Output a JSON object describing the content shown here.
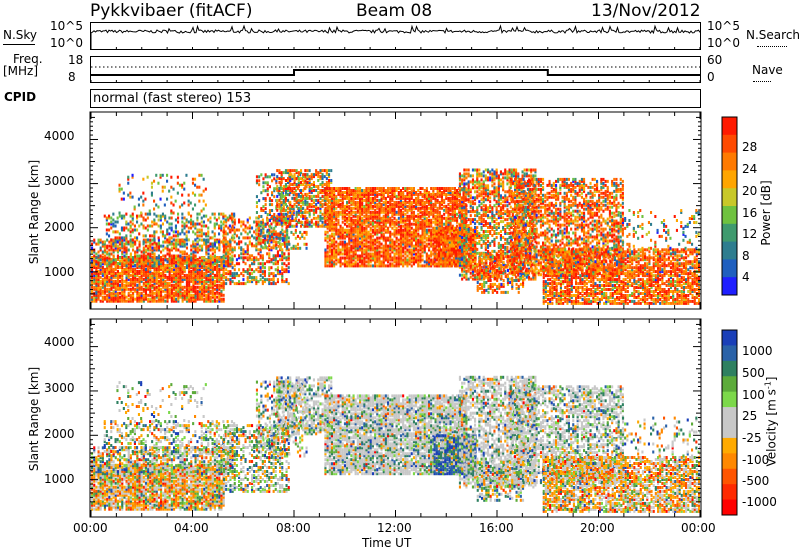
{
  "header": {
    "station": "Pykkvibaer (fitACF)",
    "beam": "Beam 08",
    "date": "13/Nov/2012"
  },
  "noise_panel": {
    "left_label": "N.Sky",
    "left_ticks": [
      "10^5",
      "10^0"
    ],
    "right_ticks": [
      "10^5",
      "10^0"
    ],
    "right_label": "N.Search"
  },
  "freq_panel": {
    "left_label_1": "Freq.",
    "left_label_2": "[MHz]",
    "left_ticks": [
      "18",
      "8"
    ],
    "right_ticks": [
      "60",
      "0"
    ],
    "right_label": "Nave"
  },
  "cpid_panel": {
    "left_label": "CPID",
    "mode_text": "normal (fast stereo) 153"
  },
  "x_axis": {
    "label": "Time UT",
    "ticks": [
      "00:00",
      "04:00",
      "08:00",
      "12:00",
      "16:00",
      "20:00",
      "00:00"
    ]
  },
  "power_colorbar": {
    "label": "Power [dB]",
    "ticks": [
      "4",
      "8",
      "12",
      "16",
      "20",
      "24",
      "28"
    ],
    "colors": [
      "#1f1fff",
      "#1f5fbf",
      "#2e7d8f",
      "#3f9a6e",
      "#6fc23f",
      "#c8c829",
      "#ffa500",
      "#ff7a00",
      "#ff4a00",
      "#ff1a00"
    ]
  },
  "velocity_colorbar": {
    "label_main": "Velocity [m s",
    "label_exp": "-1",
    "label_end": "]",
    "ticks": [
      "1000",
      "500",
      "100",
      "25",
      "-25",
      "-100",
      "-500",
      "-1000"
    ],
    "colors": [
      "#1a3fb8",
      "#2a62a8",
      "#2e8060",
      "#5cab3a",
      "#7cd84a",
      "#c8c8c8",
      "#c8c8c8",
      "#ffaa00",
      "#ff8800",
      "#ff5500",
      "#ff2a00",
      "#ff0000"
    ]
  },
  "chart_data": [
    {
      "type": "heatmap",
      "name": "power",
      "xlabel": "Time UT",
      "ylabel": "Slant Range [km]",
      "xlim": [
        0,
        24
      ],
      "ylim": [
        180,
        4600
      ],
      "yticks": [
        "1000",
        "2000",
        "3000",
        "4000"
      ],
      "colorbar_label": "Power [dB]",
      "colorbar_range": [
        0,
        32
      ]
    },
    {
      "type": "heatmap",
      "name": "velocity",
      "xlabel": "Time UT",
      "ylabel": "Slant Range [km]",
      "xlim": [
        0,
        24
      ],
      "ylim": [
        180,
        4600
      ],
      "yticks": [
        "1000",
        "2000",
        "3000",
        "4000"
      ],
      "colorbar_label": "Velocity [m s-1]",
      "colorbar_range": [
        -1000,
        1000
      ]
    }
  ]
}
